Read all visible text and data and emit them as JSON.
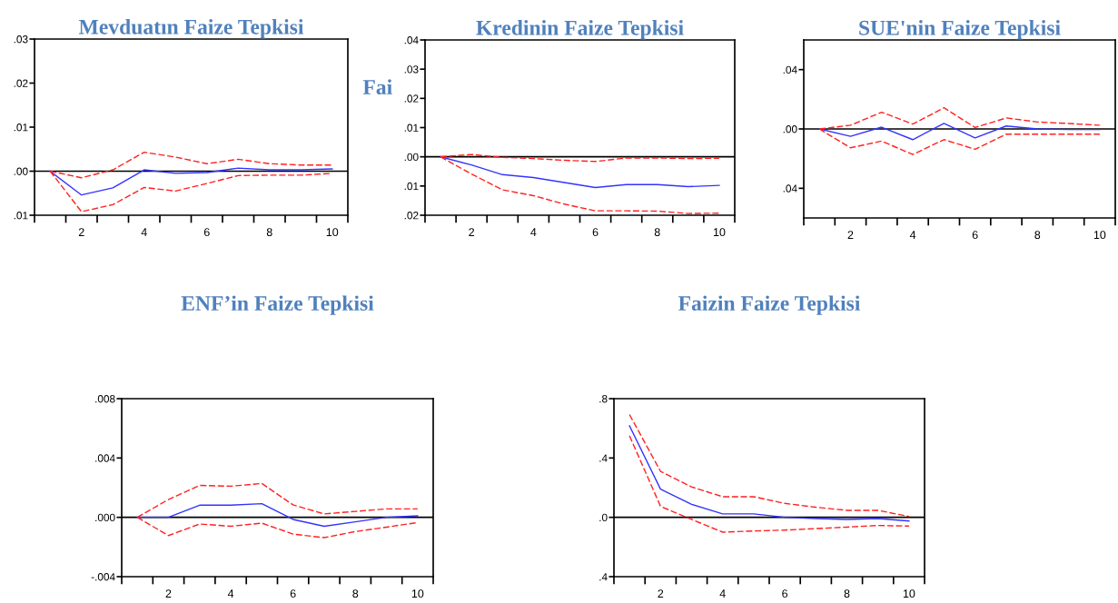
{
  "chart_data": [
    {
      "type": "line",
      "title": "Mevduatın Faize Tepkisi",
      "x": [
        1,
        2,
        3,
        4,
        5,
        6,
        7,
        8,
        9,
        10
      ],
      "xlim": [
        0.5,
        10.5
      ],
      "xticks": [
        {
          "value": 0.5,
          "label": null
        },
        {
          "value": 1.5,
          "label": null
        },
        {
          "value": 2.5,
          "label": null
        },
        {
          "value": 3.5,
          "label": null
        },
        {
          "value": 4.5,
          "label": null
        },
        {
          "value": 5.5,
          "label": null
        },
        {
          "value": 6.5,
          "label": null
        },
        {
          "value": 7.5,
          "label": null
        },
        {
          "value": 8.5,
          "label": null
        },
        {
          "value": 9.5,
          "label": null
        },
        {
          "value": 10.5,
          "label": null
        },
        2,
        4,
        6,
        8,
        10
      ],
      "ylim": [
        -0.01,
        0.03
      ],
      "yticks": [
        {
          "value": -0.01,
          "label": ".01"
        },
        {
          "value": 0,
          "label": ".00"
        },
        {
          "value": 0.01,
          "label": ".01"
        },
        {
          "value": 0.02,
          "label": ".02"
        },
        {
          "value": 0.03,
          "label": ".03"
        }
      ],
      "grid": false,
      "legend": false,
      "ref_lines": [
        {
          "axis": "y",
          "value": 0,
          "color": "#000000"
        }
      ],
      "series": [
        {
          "color": "#3333ff",
          "line_style": "solid",
          "values": [
            0,
            -0.0054,
            -0.0038,
            0.0003,
            -0.0005,
            -0.0003,
            0.0007,
            0.0003,
            0.0003,
            0.0005
          ]
        },
        {
          "color": "#ff2020",
          "line_style": "dashed",
          "values": [
            0,
            -0.0015,
            0.0003,
            0.0043,
            0.0032,
            0.0017,
            0.0027,
            0.0017,
            0.0014,
            0.0014
          ]
        },
        {
          "color": "#ff2020",
          "line_style": "dashed",
          "values": [
            0,
            -0.0092,
            -0.0076,
            -0.0037,
            -0.0045,
            -0.0028,
            -0.001,
            -0.0009,
            -0.0009,
            -0.0005
          ]
        }
      ]
    },
    {
      "type": "line",
      "title": "Kredinin Faize Tepkisi",
      "annotations": [
        "Fai"
      ],
      "x": [
        1,
        2,
        3,
        4,
        5,
        6,
        7,
        8,
        9,
        10
      ],
      "xlim": [
        0.5,
        10.5
      ],
      "xticks": [
        {
          "value": 0.5,
          "label": null
        },
        {
          "value": 1.5,
          "label": null
        },
        {
          "value": 2.5,
          "label": null
        },
        {
          "value": 3.5,
          "label": null
        },
        {
          "value": 4.5,
          "label": null
        },
        {
          "value": 5.5,
          "label": null
        },
        {
          "value": 6.5,
          "label": null
        },
        {
          "value": 7.5,
          "label": null
        },
        {
          "value": 8.5,
          "label": null
        },
        {
          "value": 9.5,
          "label": null
        },
        {
          "value": 10.5,
          "label": null
        },
        2,
        4,
        6,
        8,
        10
      ],
      "ylim": [
        -0.02,
        0.04
      ],
      "yticks": [
        {
          "value": -0.02,
          "label": ".02"
        },
        {
          "value": -0.01,
          "label": ".01"
        },
        {
          "value": 0,
          "label": ".00"
        },
        {
          "value": 0.01,
          "label": ".01"
        },
        {
          "value": 0.02,
          "label": ".02"
        },
        {
          "value": 0.03,
          "label": ".03"
        },
        {
          "value": 0.04,
          "label": ".04"
        }
      ],
      "grid": false,
      "legend": false,
      "ref_lines": [
        {
          "axis": "y",
          "value": 0,
          "color": "#000000"
        }
      ],
      "series": [
        {
          "color": "#3333ff",
          "line_style": "solid",
          "values": [
            0,
            -0.0028,
            -0.0061,
            -0.0071,
            -0.0088,
            -0.0105,
            -0.0095,
            -0.0095,
            -0.0102,
            -0.0098
          ]
        },
        {
          "color": "#ff2020",
          "line_style": "dashed",
          "values": [
            0,
            0.0008,
            -0.0002,
            -0.0006,
            -0.0012,
            -0.0016,
            -0.0004,
            -0.0004,
            -0.0006,
            -0.0005
          ]
        },
        {
          "color": "#ff2020",
          "line_style": "dashed",
          "values": [
            0,
            -0.0059,
            -0.0113,
            -0.0133,
            -0.0162,
            -0.0185,
            -0.0185,
            -0.0186,
            -0.0194,
            -0.0193
          ]
        }
      ]
    },
    {
      "type": "line",
      "title": "SUE'nin Faize Tepkisi",
      "x": [
        1,
        2,
        3,
        4,
        5,
        6,
        7,
        8,
        9,
        10
      ],
      "xlim": [
        0.5,
        10.5
      ],
      "xticks": [
        {
          "value": 0.5,
          "label": null
        },
        {
          "value": 1.5,
          "label": null
        },
        {
          "value": 2.5,
          "label": null
        },
        {
          "value": 3.5,
          "label": null
        },
        {
          "value": 4.5,
          "label": null
        },
        {
          "value": 5.5,
          "label": null
        },
        {
          "value": 6.5,
          "label": null
        },
        {
          "value": 7.5,
          "label": null
        },
        {
          "value": 8.5,
          "label": null
        },
        {
          "value": 9.5,
          "label": null
        },
        {
          "value": 10.5,
          "label": null
        },
        2,
        4,
        6,
        8,
        10
      ],
      "ylim": [
        -0.06,
        0.06
      ],
      "yticks": [
        {
          "value": -0.04,
          "label": ".04"
        },
        {
          "value": 0,
          "label": ".00"
        },
        {
          "value": 0.04,
          "label": ".04"
        }
      ],
      "grid": false,
      "legend": false,
      "ref_lines": [
        {
          "axis": "y",
          "value": 0,
          "color": "#000000"
        }
      ],
      "series": [
        {
          "color": "#3333ff",
          "line_style": "solid",
          "values": [
            0,
            -0.005,
            0.0012,
            -0.0072,
            0.0037,
            -0.0061,
            0.002,
            0,
            -0.0004,
            -0.0004
          ]
        },
        {
          "color": "#ff2020",
          "line_style": "dashed",
          "values": [
            0,
            0.0025,
            0.0113,
            0.0033,
            0.0143,
            0.001,
            0.0074,
            0.0047,
            0.0037,
            0.0025
          ]
        },
        {
          "color": "#ff2020",
          "line_style": "dashed",
          "values": [
            0,
            -0.0127,
            -0.0082,
            -0.0172,
            -0.0072,
            -0.0137,
            -0.0035,
            -0.0035,
            -0.0035,
            -0.0035
          ]
        }
      ]
    },
    {
      "type": "line",
      "title": "ENF’in Faize Tepkisi",
      "x": [
        1,
        2,
        3,
        4,
        5,
        6,
        7,
        8,
        9,
        10
      ],
      "xlim": [
        0.5,
        10.5
      ],
      "xticks": [
        {
          "value": 0.5,
          "label": null
        },
        {
          "value": 1.5,
          "label": null
        },
        {
          "value": 2.5,
          "label": null
        },
        {
          "value": 3.5,
          "label": null
        },
        {
          "value": 4.5,
          "label": null
        },
        {
          "value": 5.5,
          "label": null
        },
        {
          "value": 6.5,
          "label": null
        },
        {
          "value": 7.5,
          "label": null
        },
        {
          "value": 8.5,
          "label": null
        },
        {
          "value": 9.5,
          "label": null
        },
        {
          "value": 10.5,
          "label": null
        },
        2,
        4,
        6,
        8,
        10
      ],
      "ylim": [
        -0.004,
        0.008
      ],
      "yticks": [
        {
          "value": -0.004,
          "label": "-.004"
        },
        {
          "value": 0,
          "label": ".000"
        },
        {
          "value": 0.004,
          "label": ".004"
        },
        {
          "value": 0.008,
          "label": ".008"
        }
      ],
      "grid": false,
      "legend": false,
      "ref_lines": [
        {
          "axis": "y",
          "value": 0,
          "color": "#000000"
        }
      ],
      "series": [
        {
          "color": "#3333ff",
          "line_style": "solid",
          "values": [
            0,
            0,
            0.00082,
            0.00082,
            0.00092,
            -0.00014,
            -0.0006,
            -0.0003,
            0,
            0.0001
          ]
        },
        {
          "color": "#ff2020",
          "line_style": "dashed",
          "values": [
            0,
            0.0012,
            0.00215,
            0.0021,
            0.00228,
            0.00084,
            0.00023,
            0.0004,
            0.00057,
            0.00057
          ]
        },
        {
          "color": "#ff2020",
          "line_style": "dashed",
          "values": [
            0,
            -0.00123,
            -0.00045,
            -0.0006,
            -0.00039,
            -0.00113,
            -0.00137,
            -0.00096,
            -0.00066,
            -0.00035
          ]
        }
      ]
    },
    {
      "type": "line",
      "title": "Faizin Faize Tepkisi",
      "x": [
        1,
        2,
        3,
        4,
        5,
        6,
        7,
        8,
        9,
        10
      ],
      "xlim": [
        0.5,
        10.5
      ],
      "xticks": [
        {
          "value": 0.5,
          "label": null
        },
        {
          "value": 1.5,
          "label": null
        },
        {
          "value": 2.5,
          "label": null
        },
        {
          "value": 3.5,
          "label": null
        },
        {
          "value": 4.5,
          "label": null
        },
        {
          "value": 5.5,
          "label": null
        },
        {
          "value": 6.5,
          "label": null
        },
        {
          "value": 7.5,
          "label": null
        },
        {
          "value": 8.5,
          "label": null
        },
        {
          "value": 9.5,
          "label": null
        },
        {
          "value": 10.5,
          "label": null
        },
        2,
        4,
        6,
        8,
        10
      ],
      "ylim": [
        -0.4,
        0.8
      ],
      "yticks": [
        {
          "value": -0.4,
          "label": ".4"
        },
        {
          "value": 0,
          "label": ".0"
        },
        {
          "value": 0.4,
          "label": ".4"
        },
        {
          "value": 0.8,
          "label": ".8"
        }
      ],
      "grid": false,
      "legend": false,
      "ref_lines": [
        {
          "axis": "y",
          "value": 0,
          "color": "#000000"
        }
      ],
      "series": [
        {
          "color": "#3333ff",
          "line_style": "solid",
          "values": [
            0.617,
            0.19,
            0.088,
            0.023,
            0.023,
            0,
            -0.008,
            -0.014,
            -0.008,
            -0.025
          ]
        },
        {
          "color": "#ff2020",
          "line_style": "dashed",
          "values": [
            0.693,
            0.31,
            0.205,
            0.139,
            0.139,
            0.094,
            0.068,
            0.047,
            0.047,
            0.006
          ]
        },
        {
          "color": "#ff2020",
          "line_style": "dashed",
          "values": [
            0.55,
            0.074,
            -0.014,
            -0.1,
            -0.092,
            -0.086,
            -0.076,
            -0.066,
            -0.055,
            -0.059
          ]
        }
      ]
    }
  ]
}
